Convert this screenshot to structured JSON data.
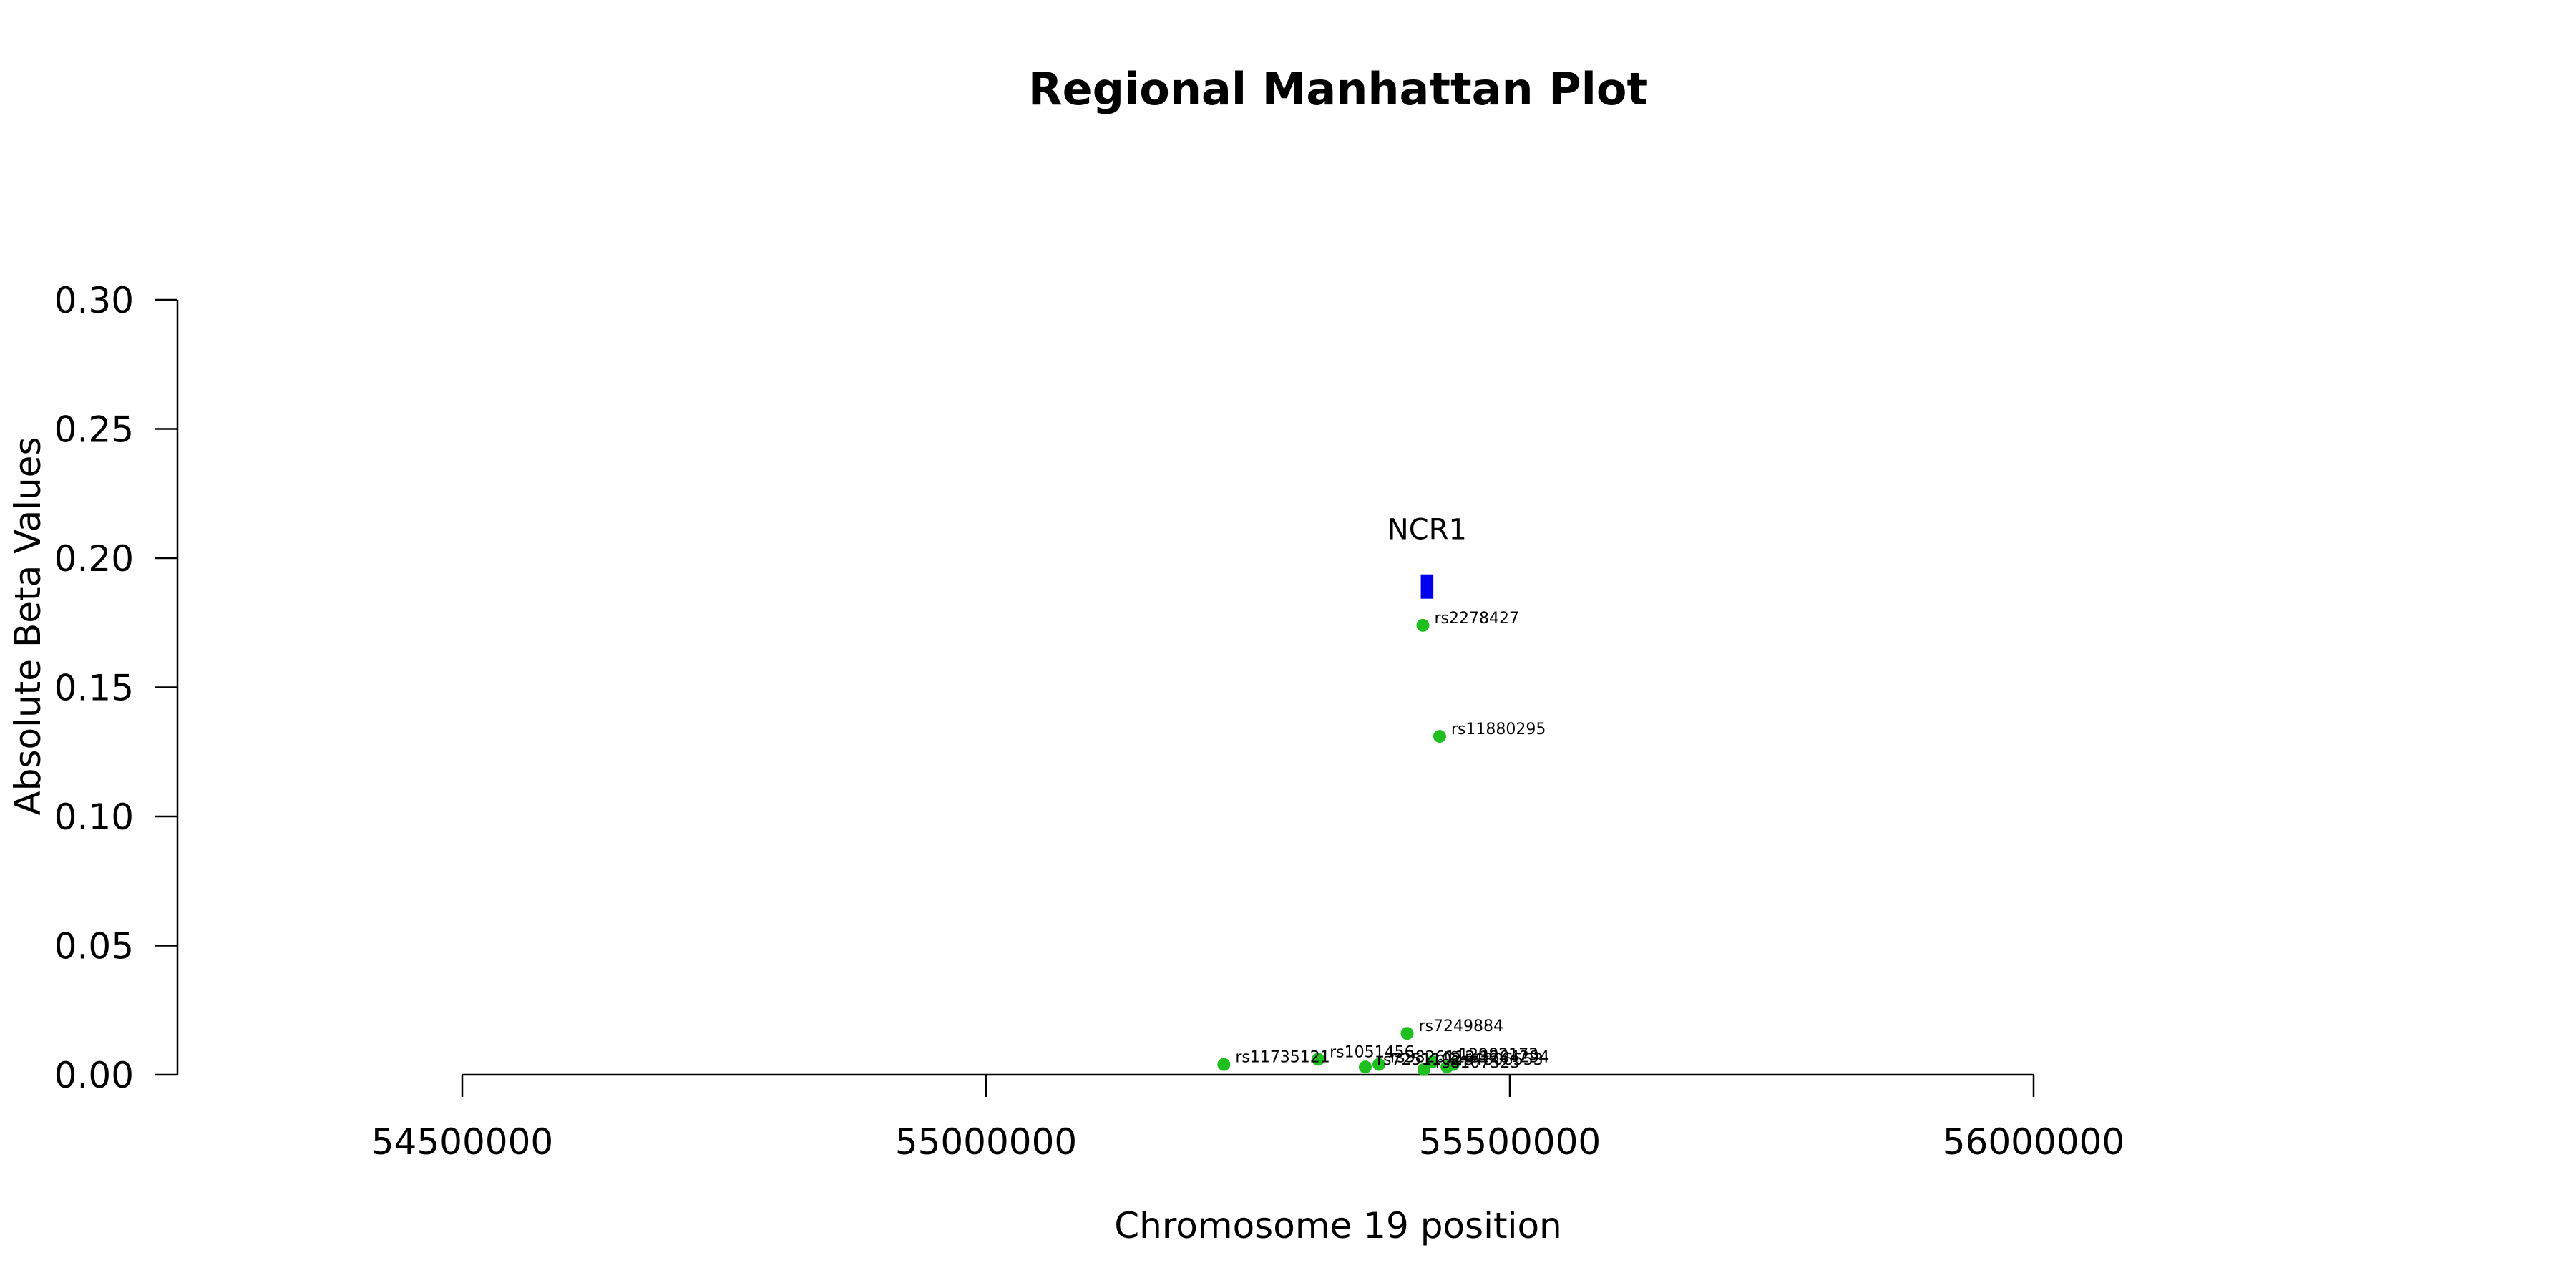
{
  "chart_data": {
    "type": "scatter",
    "title": "Regional Manhattan Plot",
    "xlabel": "Chromosome 19 position",
    "ylabel": "Absolute Beta Values",
    "xlim": [
      54500000,
      56000000
    ],
    "ylim": [
      0,
      0.3
    ],
    "x_ticks": [
      54500000,
      55000000,
      55500000,
      56000000
    ],
    "x_tick_labels": [
      "54500000",
      "55000000",
      "55500000",
      "56000000"
    ],
    "y_ticks": [
      0,
      0.05,
      0.1,
      0.15,
      0.2,
      0.25,
      0.3
    ],
    "y_tick_labels": [
      "0.00",
      "0.05",
      "0.10",
      "0.15",
      "0.20",
      "0.25",
      "0.30"
    ],
    "grid": false,
    "point_color": "#1fbf1f",
    "gene_color": "#0000ee",
    "gene": {
      "name": "NCR1",
      "start": 55415000,
      "end": 55427000,
      "y": 0.189
    },
    "points": [
      {
        "id": "rs2278427",
        "x": 55417000,
        "y": 0.174
      },
      {
        "id": "rs11880295",
        "x": 55433000,
        "y": 0.131
      },
      {
        "id": "rs7249884",
        "x": 55402000,
        "y": 0.016
      },
      {
        "id": "rs11735121",
        "x": 55227000,
        "y": 0.004
      },
      {
        "id": "rs1051456",
        "x": 55317000,
        "y": 0.006
      },
      {
        "id": "rs7251102",
        "x": 55362000,
        "y": 0.003
      },
      {
        "id": "rs3826112",
        "x": 55375000,
        "y": 0.004
      },
      {
        "id": "rs8107323",
        "x": 55418000,
        "y": 0.002
      },
      {
        "id": "rs12982173",
        "x": 55426000,
        "y": 0.005
      },
      {
        "id": "rs1204294",
        "x": 55446000,
        "y": 0.004
      },
      {
        "id": "rs4806553",
        "x": 55440000,
        "y": 0.003
      }
    ]
  }
}
